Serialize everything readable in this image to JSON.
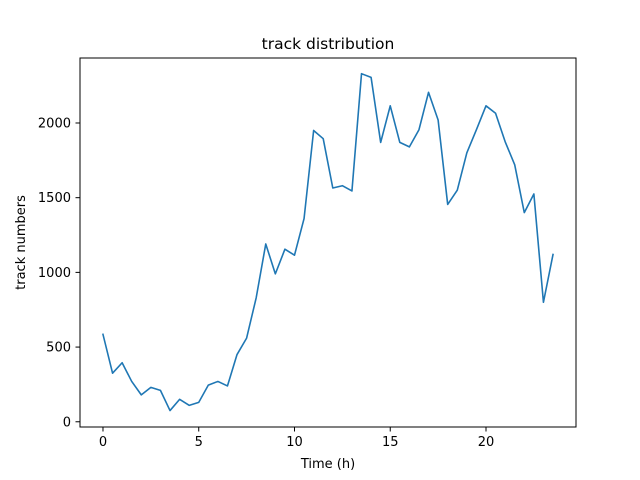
{
  "chart_data": {
    "type": "line",
    "title": "track distribution",
    "xlabel": "Time (h)",
    "ylabel": "track numbers",
    "xlim": [
      -1.2,
      24.7
    ],
    "ylim": [
      -35,
      2435
    ],
    "x_ticks": [
      0,
      5,
      10,
      15,
      20
    ],
    "y_ticks": [
      0,
      500,
      1000,
      1500,
      2000
    ],
    "grid": false,
    "legend": "none",
    "series": [
      {
        "color": "#1f77b4",
        "x": [
          0,
          0.5,
          1,
          1.5,
          2,
          2.5,
          3,
          3.5,
          4,
          4.5,
          5,
          5.5,
          6,
          6.5,
          7,
          7.5,
          8,
          8.5,
          9,
          9.5,
          10,
          10.5,
          11,
          11.5,
          12,
          12.5,
          13,
          13.5,
          14,
          14.5,
          15,
          15.5,
          16,
          16.5,
          17,
          17.5,
          18,
          18.5,
          19,
          19.5,
          20,
          20.5,
          21,
          21.5,
          22,
          22.5,
          23,
          23.5
        ],
        "y": [
          585,
          325,
          395,
          270,
          180,
          230,
          210,
          75,
          150,
          110,
          130,
          245,
          270,
          240,
          450,
          560,
          830,
          1190,
          990,
          1155,
          1115,
          1360,
          1950,
          1895,
          1565,
          1580,
          1545,
          2330,
          2305,
          1870,
          2115,
          1870,
          1840,
          1955,
          2205,
          2020,
          1455,
          1550,
          1800,
          1955,
          2115,
          2065,
          1875,
          1720,
          1400,
          1525,
          800,
          1120
        ]
      }
    ]
  }
}
